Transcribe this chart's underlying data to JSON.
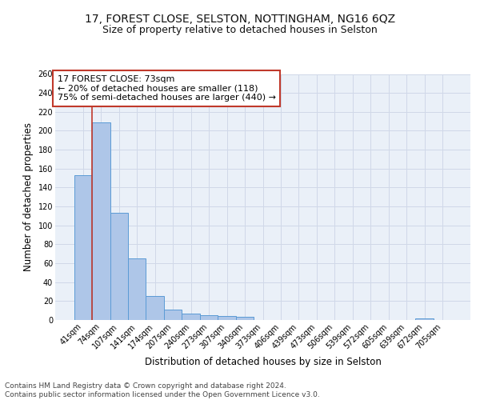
{
  "title1": "17, FOREST CLOSE, SELSTON, NOTTINGHAM, NG16 6QZ",
  "title2": "Size of property relative to detached houses in Selston",
  "xlabel": "Distribution of detached houses by size in Selston",
  "ylabel": "Number of detached properties",
  "bin_labels": [
    "41sqm",
    "74sqm",
    "107sqm",
    "141sqm",
    "174sqm",
    "207sqm",
    "240sqm",
    "273sqm",
    "307sqm",
    "340sqm",
    "373sqm",
    "406sqm",
    "439sqm",
    "473sqm",
    "506sqm",
    "539sqm",
    "572sqm",
    "605sqm",
    "639sqm",
    "672sqm",
    "705sqm"
  ],
  "bar_heights": [
    153,
    209,
    113,
    65,
    25,
    11,
    7,
    5,
    4,
    3,
    0,
    0,
    0,
    0,
    0,
    0,
    0,
    0,
    0,
    2,
    0
  ],
  "bar_color": "#aec6e8",
  "bar_edge_color": "#5b9bd5",
  "vline_x": 1.0,
  "vline_color": "#c0392b",
  "annotation_text": "17 FOREST CLOSE: 73sqm\n← 20% of detached houses are smaller (118)\n75% of semi-detached houses are larger (440) →",
  "annotation_box_color": "#ffffff",
  "annotation_box_edge": "#c0392b",
  "ylim": [
    0,
    260
  ],
  "yticks": [
    0,
    20,
    40,
    60,
    80,
    100,
    120,
    140,
    160,
    180,
    200,
    220,
    240,
    260
  ],
  "grid_color": "#d0d8e8",
  "background_color": "#eaf0f8",
  "footer_text": "Contains HM Land Registry data © Crown copyright and database right 2024.\nContains public sector information licensed under the Open Government Licence v3.0.",
  "title1_fontsize": 10,
  "title2_fontsize": 9,
  "xlabel_fontsize": 8.5,
  "ylabel_fontsize": 8.5,
  "tick_fontsize": 7,
  "annotation_fontsize": 8,
  "footer_fontsize": 6.5
}
